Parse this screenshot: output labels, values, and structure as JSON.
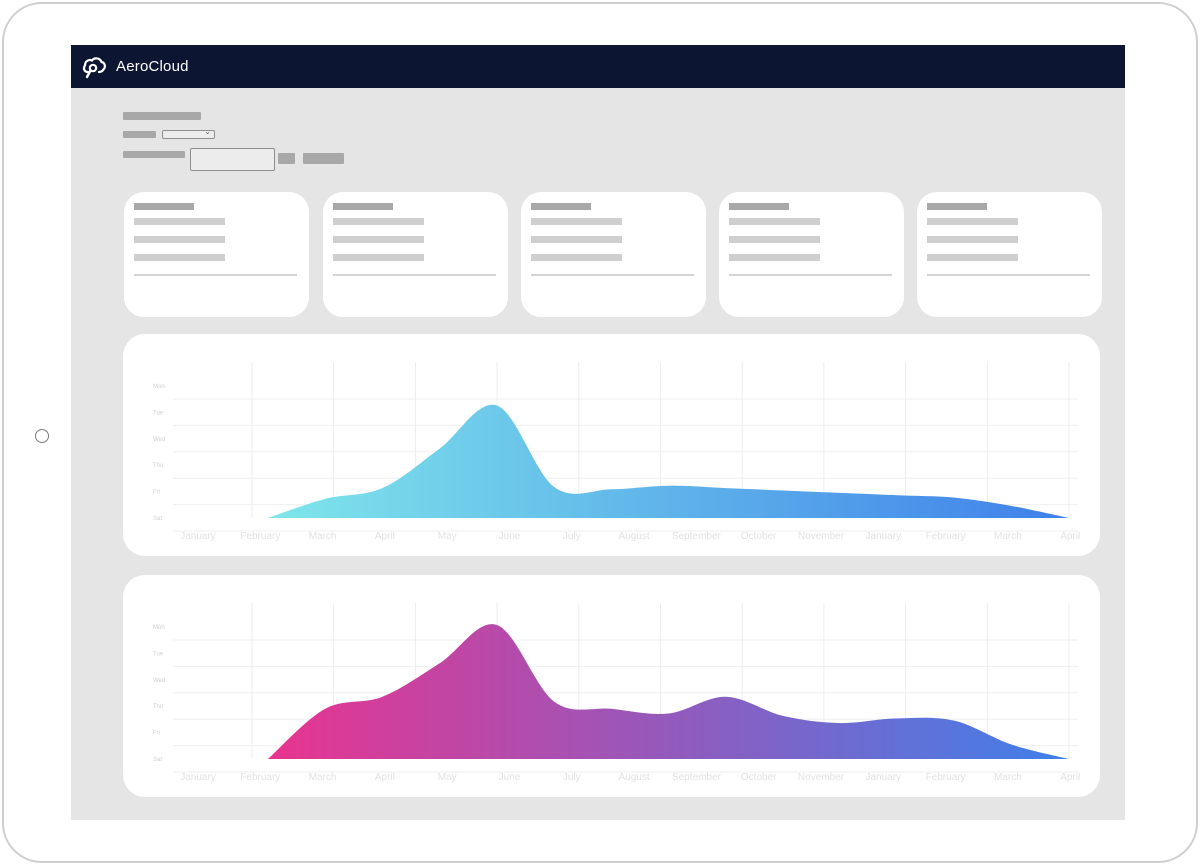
{
  "app": {
    "brand": "AeroCloud",
    "logo_icon": "cloud-pin-icon"
  },
  "colors": {
    "topbar": "#0c1532",
    "chart1_start": "#7fe6ea",
    "chart1_end": "#3f80ea",
    "chart2_start": "#e8348f",
    "chart2_end": "#3f80ea"
  },
  "charts": {
    "x_labels": [
      "January",
      "February",
      "March",
      "April",
      "May",
      "June",
      "July",
      "August",
      "September",
      "October",
      "November",
      "January",
      "February",
      "March",
      "April"
    ],
    "y_labels": [
      "Mon",
      "Tue",
      "Wed",
      "Thu",
      "Fri",
      "Sat"
    ]
  },
  "chart_data": [
    {
      "type": "area",
      "categories": [
        "January",
        "February",
        "March",
        "April",
        "May",
        "June",
        "July",
        "August",
        "September",
        "October",
        "November",
        "January",
        "February",
        "March",
        "April"
      ],
      "y_ticks": [
        "Mon",
        "Tue",
        "Wed",
        "Thu",
        "Fri",
        "Sat"
      ],
      "values": [
        0,
        0.8,
        1.25,
        2.9,
        4.7,
        1.3,
        1.2,
        1.35,
        1.25,
        1.15,
        1.05,
        0.95,
        0.85,
        0.5,
        0
      ],
      "grid": true,
      "title": "",
      "xlabel": "",
      "ylabel": ""
    },
    {
      "type": "area",
      "categories": [
        "January",
        "February",
        "March",
        "April",
        "May",
        "June",
        "July",
        "August",
        "September",
        "October",
        "November",
        "January",
        "February",
        "March",
        "April"
      ],
      "y_ticks": [
        "Mon",
        "Tue",
        "Wed",
        "Thu",
        "Fri",
        "Sat"
      ],
      "values": [
        0,
        2.1,
        2.6,
        4.0,
        5.6,
        2.4,
        2.1,
        1.9,
        2.6,
        1.8,
        1.5,
        1.7,
        1.6,
        0.6,
        0
      ],
      "grid": true,
      "title": "",
      "xlabel": "",
      "ylabel": ""
    }
  ]
}
